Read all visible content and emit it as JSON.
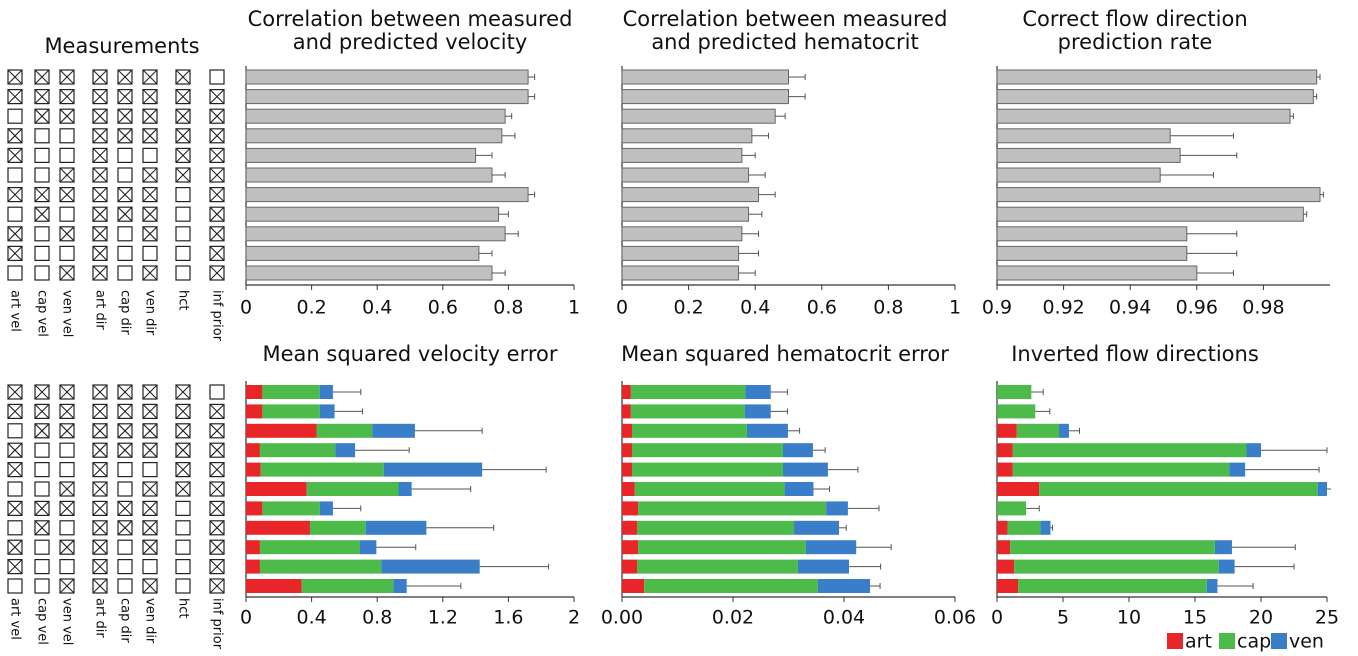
{
  "measurements": {
    "title": "Measurements",
    "columns": [
      "art vel",
      "cap vel",
      "ven vel",
      "art dir",
      "cap dir",
      "ven dir",
      "hct",
      "inf prior"
    ],
    "rows": [
      [
        1,
        1,
        1,
        1,
        1,
        1,
        1,
        0
      ],
      [
        1,
        1,
        1,
        1,
        1,
        1,
        1,
        1
      ],
      [
        0,
        1,
        1,
        1,
        1,
        1,
        1,
        1
      ],
      [
        1,
        0,
        0,
        1,
        1,
        1,
        1,
        1
      ],
      [
        1,
        0,
        0,
        1,
        0,
        0,
        1,
        1
      ],
      [
        0,
        0,
        1,
        1,
        0,
        1,
        1,
        1
      ],
      [
        1,
        1,
        1,
        1,
        1,
        1,
        0,
        1
      ],
      [
        0,
        1,
        0,
        1,
        1,
        1,
        0,
        1
      ],
      [
        1,
        0,
        1,
        1,
        0,
        1,
        0,
        1
      ],
      [
        1,
        0,
        0,
        1,
        0,
        0,
        0,
        1
      ],
      [
        0,
        0,
        1,
        1,
        0,
        1,
        0,
        1
      ]
    ]
  },
  "chart_data": [
    {
      "type": "bar",
      "title": [
        "Correlation between measured",
        "and predicted velocity"
      ],
      "color": "#c0c0c0",
      "values": [
        0.86,
        0.86,
        0.79,
        0.78,
        0.7,
        0.75,
        0.86,
        0.77,
        0.79,
        0.71,
        0.75
      ],
      "errors": [
        0.02,
        0.02,
        0.02,
        0.04,
        0.05,
        0.04,
        0.02,
        0.03,
        0.04,
        0.04,
        0.04
      ],
      "xlim": [
        0,
        1
      ],
      "xticks": [
        0,
        0.2,
        0.4,
        0.6,
        0.8,
        1
      ]
    },
    {
      "type": "bar",
      "title": [
        "Correlation between measured",
        "and predicted hematocrit"
      ],
      "color": "#c0c0c0",
      "values": [
        0.5,
        0.5,
        0.46,
        0.39,
        0.36,
        0.38,
        0.41,
        0.38,
        0.36,
        0.35,
        0.35
      ],
      "errors": [
        0.05,
        0.05,
        0.03,
        0.05,
        0.04,
        0.05,
        0.05,
        0.04,
        0.05,
        0.06,
        0.05
      ],
      "xlim": [
        0,
        1
      ],
      "xticks": [
        0,
        0.2,
        0.4,
        0.6,
        0.8,
        1
      ]
    },
    {
      "type": "bar",
      "title": [
        "Correct flow direction",
        "prediction rate"
      ],
      "color": "#c0c0c0",
      "values": [
        0.996,
        0.995,
        0.988,
        0.952,
        0.955,
        0.949,
        0.997,
        0.992,
        0.957,
        0.957,
        0.96
      ],
      "errors": [
        0.001,
        0.001,
        0.001,
        0.019,
        0.017,
        0.016,
        0.001,
        0.001,
        0.015,
        0.015,
        0.011
      ],
      "xlim": [
        0.9,
        1
      ],
      "xticks": [
        0.9,
        0.92,
        0.94,
        0.96,
        0.98
      ]
    },
    {
      "type": "stacked-bar",
      "title": [
        "Mean squared velocity error"
      ],
      "series": [
        {
          "name": "art",
          "color": "#e8262a",
          "values": [
            0.1,
            0.1,
            0.43,
            0.085,
            0.09,
            0.37,
            0.1,
            0.39,
            0.085,
            0.085,
            0.34
          ]
        },
        {
          "name": "cap",
          "color": "#4cbb4a",
          "values": [
            0.35,
            0.35,
            0.34,
            0.46,
            0.75,
            0.56,
            0.35,
            0.34,
            0.61,
            0.74,
            0.56
          ]
        },
        {
          "name": "ven",
          "color": "#3a7dc8",
          "values": [
            0.08,
            0.09,
            0.26,
            0.12,
            0.6,
            0.08,
            0.08,
            0.37,
            0.1,
            0.6,
            0.08
          ]
        }
      ],
      "errors": [
        0.17,
        0.17,
        0.41,
        0.33,
        0.39,
        0.36,
        0.17,
        0.41,
        0.24,
        0.42,
        0.33
      ],
      "xlim": [
        0,
        2
      ],
      "xticks": [
        0,
        0.4,
        0.8,
        1.2,
        1.6,
        2
      ]
    },
    {
      "type": "stacked-bar",
      "title": [
        "Mean squared hematocrit error"
      ],
      "series": [
        {
          "name": "art",
          "color": "#e8262a",
          "values": [
            0.0016,
            0.0016,
            0.0018,
            0.0018,
            0.0018,
            0.0023,
            0.0029,
            0.0027,
            0.0029,
            0.0027,
            0.004
          ]
        },
        {
          "name": "cap",
          "color": "#4cbb4a",
          "values": [
            0.0206,
            0.0205,
            0.0207,
            0.0272,
            0.0272,
            0.027,
            0.0339,
            0.0283,
            0.0302,
            0.029,
            0.0313
          ]
        },
        {
          "name": "ven",
          "color": "#3a7dc8",
          "values": [
            0.0046,
            0.0047,
            0.0074,
            0.0054,
            0.0081,
            0.0052,
            0.0039,
            0.0081,
            0.0091,
            0.0092,
            0.0094
          ]
        }
      ],
      "errors": [
        0.003,
        0.003,
        0.0021,
        0.0022,
        0.0054,
        0.0029,
        0.0056,
        0.0013,
        0.0063,
        0.0057,
        0.0018
      ],
      "xlim": [
        0,
        0.06
      ],
      "xticks": [
        {
          "value": 0,
          "label": "0.00"
        },
        0.02,
        0.04,
        0.06
      ]
    },
    {
      "type": "stacked-bar",
      "title": [
        "Inverted flow directions"
      ],
      "series": [
        {
          "name": "art",
          "color": "#e8262a",
          "values": [
            0,
            0,
            1.5,
            1.2,
            1.2,
            3.2,
            0,
            0.8,
            1.0,
            1.3,
            1.6
          ]
        },
        {
          "name": "cap",
          "color": "#4cbb4a",
          "values": [
            2.6,
            2.9,
            3.2,
            17.7,
            16.4,
            21.1,
            2.2,
            2.5,
            15.5,
            15.5,
            14.3
          ]
        },
        {
          "name": "ven",
          "color": "#3a7dc8",
          "values": [
            0,
            0,
            0.75,
            1.1,
            1.2,
            0.7,
            0,
            0.75,
            1.3,
            1.2,
            0.8
          ]
        }
      ],
      "errors": [
        0.9,
        1.1,
        0.8,
        5,
        5.6,
        3,
        1.0,
        0.15,
        4.8,
        4.5,
        2.7
      ],
      "xlim": [
        0,
        25
      ],
      "xticks": [
        0,
        5,
        10,
        15,
        20,
        25
      ]
    }
  ]
}
